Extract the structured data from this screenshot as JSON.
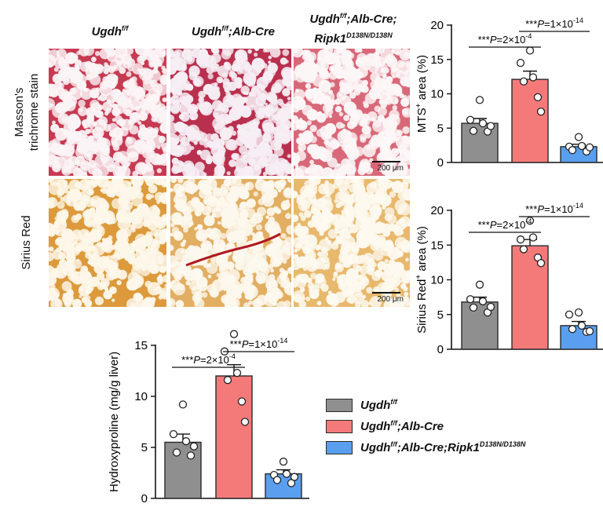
{
  "columns": [
    {
      "gene": "Ugdh",
      "sup": "f/f",
      "rest": "",
      "line2": "",
      "line2_sup": ""
    },
    {
      "gene": "Ugdh",
      "sup": "f/f",
      "rest": ";Alb-Cre",
      "line2": "",
      "line2_sup": ""
    },
    {
      "gene": "Ugdh",
      "sup": "f/f",
      "rest": ";Alb-Cre;",
      "line2": "Ripk1",
      "line2_sup": "D138N/D138N"
    }
  ],
  "rows": [
    {
      "label_line1": "Masson's",
      "label_line2": "trichrome stain"
    },
    {
      "label_line1": "Sirius Red",
      "label_line2": ""
    }
  ],
  "scale_bar": "200 μm",
  "colors": {
    "gray": "#8f8f8f",
    "red": "#f47a7a",
    "blue": "#5a9ef0",
    "bar_outline": "#2a2a2a",
    "trichrome_bg": "#c63a52",
    "sirius_bg": "#dc9a3c"
  },
  "legend": [
    {
      "color": "#8f8f8f",
      "gene": "Ugdh",
      "sup": "f/f",
      "rest": "",
      "gene2": "",
      "sup2": ""
    },
    {
      "color": "#f47a7a",
      "gene": "Ugdh",
      "sup": "f/f",
      "rest": ";Alb-Cre",
      "gene2": "",
      "sup2": ""
    },
    {
      "color": "#5a9ef0",
      "gene": "Ugdh",
      "sup": "f/f",
      "rest": ";Alb-Cre;",
      "gene2": "Ripk1",
      "sup2": "D138N/D138N"
    }
  ],
  "chart_data": [
    {
      "type": "bar",
      "ylabel_pre": "MTS",
      "ylabel_sup": "+",
      "ylabel_post": " area (%)",
      "ylim": [
        0,
        20
      ],
      "yticks": [
        0,
        5,
        10,
        15,
        20
      ],
      "categories": [
        "Ugdh f/f",
        "Ugdh f/f;Alb-Cre",
        "Ugdh f/f;Alb-Cre;Ripk1 D138N/D138N"
      ],
      "values": [
        5.7,
        12.1,
        2.3
      ],
      "errors": [
        0.7,
        1.2,
        0.35
      ],
      "points": [
        [
          9.1,
          6.2,
          5.7,
          4.6,
          4.5,
          5.3
        ],
        [
          16.3,
          14.5,
          12.4,
          11.8,
          9.5,
          7.4
        ],
        [
          3.7,
          2.3,
          2.4,
          1.8,
          1.6,
          2.2
        ]
      ],
      "annotations": [
        {
          "from": 0,
          "to": 1,
          "text": "***P=2×10",
          "exp": "-4"
        },
        {
          "from": 1,
          "to": 2,
          "text": "***P=1×10",
          "exp": "-14"
        }
      ]
    },
    {
      "type": "bar",
      "ylabel_pre": "Sirius Red",
      "ylabel_sup": "+",
      "ylabel_post": " area (%)",
      "ylim": [
        0,
        20
      ],
      "yticks": [
        0,
        5,
        10,
        15,
        20
      ],
      "categories": [
        "Ugdh f/f",
        "Ugdh f/f;Alb-Cre",
        "Ugdh f/f;Alb-Cre;Ripk1 D138N/D138N"
      ],
      "values": [
        6.8,
        14.9,
        3.4
      ],
      "errors": [
        0.7,
        0.9,
        0.6
      ],
      "points": [
        [
          9.3,
          7.2,
          6.9,
          6.0,
          5.3,
          6.1
        ],
        [
          18.5,
          15.8,
          16.1,
          14.4,
          13.2,
          12.4
        ],
        [
          5.3,
          5.0,
          3.4,
          2.9,
          2.5,
          2.6
        ]
      ],
      "annotations": [
        {
          "from": 0,
          "to": 1,
          "text": "***P=2×10",
          "exp": "-4"
        },
        {
          "from": 1,
          "to": 2,
          "text": "***P=1×10",
          "exp": "-14"
        }
      ]
    },
    {
      "type": "bar",
      "ylabel_pre": "Hydroxyproline (mg/g liver)",
      "ylabel_sup": "",
      "ylabel_post": "",
      "ylim": [
        0,
        15
      ],
      "yticks": [
        0,
        5,
        10,
        15
      ],
      "categories": [
        "Ugdh f/f",
        "Ugdh f/f;Alb-Cre",
        "Ugdh f/f;Alb-Cre;Ripk1 D138N/D138N"
      ],
      "values": [
        5.5,
        12.0,
        2.4
      ],
      "errors": [
        0.8,
        1.1,
        0.4
      ],
      "points": [
        [
          9.2,
          6.3,
          5.6,
          4.5,
          4.2,
          5.1
        ],
        [
          16.1,
          14.4,
          12.3,
          11.6,
          9.5,
          7.5
        ],
        [
          3.6,
          2.3,
          2.4,
          1.8,
          1.5,
          2.1
        ]
      ],
      "annotations": [
        {
          "from": 0,
          "to": 1,
          "text": "***P=2×10",
          "exp": "-4"
        },
        {
          "from": 1,
          "to": 2,
          "text": "***P=1×10",
          "exp": "-14"
        }
      ]
    }
  ]
}
